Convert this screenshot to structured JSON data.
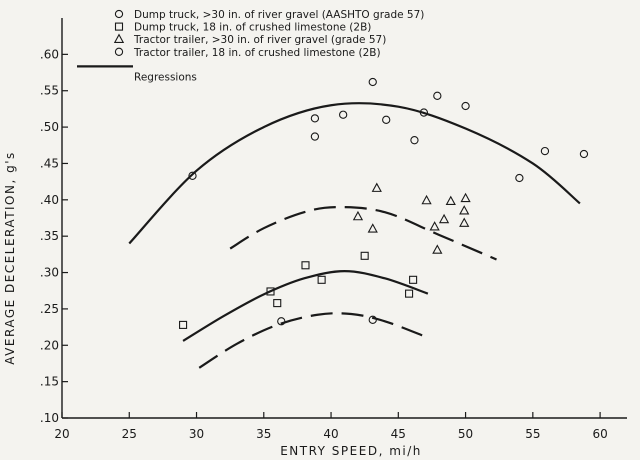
{
  "chart_data": {
    "type": "scatter",
    "xlabel": "ENTRY SPEED, mi/h",
    "ylabel": "AVERAGE DECELERATION, g's",
    "xlim": [
      20,
      62
    ],
    "ylim": [
      0.1,
      0.65
    ],
    "xticks": [
      20,
      25,
      30,
      35,
      40,
      45,
      50,
      55,
      60
    ],
    "yticks": [
      0.1,
      0.15,
      0.2,
      0.25,
      0.3,
      0.35,
      0.4,
      0.45,
      0.5,
      0.55,
      0.6
    ],
    "ytick_labels": [
      ".10",
      ".15",
      ".20",
      ".25",
      ".30",
      ".35",
      ".40",
      ".45",
      ".50",
      ".55",
      ".60"
    ],
    "grid": false,
    "legend_position": "top-left",
    "legend": [
      {
        "label": "Dump truck, >30 in. of river gravel (AASHTO grade 57)",
        "marker": "circle"
      },
      {
        "label": "Dump truck, 18 in. of crushed limestone (2B)",
        "marker": "square"
      },
      {
        "label": "Tractor trailer, >30 in. of river gravel (grade 57)",
        "marker": "triangle"
      },
      {
        "label": "Tractor trailer, 18 in. of crushed limestone (2B)",
        "marker": "circle"
      },
      {
        "label": "Regressions",
        "marker": "line"
      }
    ],
    "series": [
      {
        "marker": "circle",
        "points": [
          [
            29.7,
            0.433
          ],
          [
            38.8,
            0.512
          ],
          [
            38.8,
            0.487
          ],
          [
            40.9,
            0.517
          ],
          [
            43.1,
            0.562
          ],
          [
            44.1,
            0.51
          ],
          [
            46.2,
            0.482
          ],
          [
            46.9,
            0.52
          ],
          [
            47.9,
            0.543
          ],
          [
            50.0,
            0.529
          ],
          [
            54.0,
            0.43
          ],
          [
            55.9,
            0.467
          ],
          [
            58.8,
            0.463
          ]
        ]
      },
      {
        "marker": "square",
        "points": [
          [
            29.0,
            0.228
          ],
          [
            35.5,
            0.274
          ],
          [
            36.0,
            0.258
          ],
          [
            38.1,
            0.31
          ],
          [
            39.3,
            0.29
          ],
          [
            42.5,
            0.323
          ],
          [
            45.8,
            0.271
          ],
          [
            46.1,
            0.29
          ]
        ]
      },
      {
        "marker": "triangle",
        "points": [
          [
            42.0,
            0.377
          ],
          [
            43.1,
            0.36
          ],
          [
            43.4,
            0.416
          ],
          [
            47.1,
            0.399
          ],
          [
            47.7,
            0.363
          ],
          [
            47.9,
            0.331
          ],
          [
            48.4,
            0.373
          ],
          [
            48.9,
            0.398
          ],
          [
            49.9,
            0.368
          ],
          [
            49.9,
            0.385
          ],
          [
            50.0,
            0.402
          ]
        ]
      },
      {
        "marker": "circle",
        "points": [
          [
            36.3,
            0.233
          ],
          [
            43.1,
            0.235
          ]
        ]
      }
    ],
    "regressions": [
      {
        "style": "solid",
        "points": [
          [
            25,
            0.34
          ],
          [
            30,
            0.44
          ],
          [
            35,
            0.5
          ],
          [
            40,
            0.53
          ],
          [
            45,
            0.528
          ],
          [
            50,
            0.498
          ],
          [
            55,
            0.45
          ],
          [
            58.5,
            0.395
          ]
        ]
      },
      {
        "style": "dashed",
        "points": [
          [
            32.5,
            0.333
          ],
          [
            35,
            0.361
          ],
          [
            38,
            0.383
          ],
          [
            40.5,
            0.39
          ],
          [
            44,
            0.383
          ],
          [
            48,
            0.352
          ],
          [
            52.3,
            0.318
          ]
        ]
      },
      {
        "style": "solid",
        "points": [
          [
            29,
            0.206
          ],
          [
            32,
            0.24
          ],
          [
            35,
            0.27
          ],
          [
            38,
            0.292
          ],
          [
            41,
            0.302
          ],
          [
            44,
            0.292
          ],
          [
            47.2,
            0.271
          ]
        ]
      },
      {
        "style": "dashed",
        "points": [
          [
            30.2,
            0.169
          ],
          [
            33,
            0.202
          ],
          [
            36,
            0.228
          ],
          [
            39,
            0.242
          ],
          [
            41.5,
            0.243
          ],
          [
            44,
            0.233
          ],
          [
            47,
            0.212
          ]
        ]
      }
    ]
  }
}
